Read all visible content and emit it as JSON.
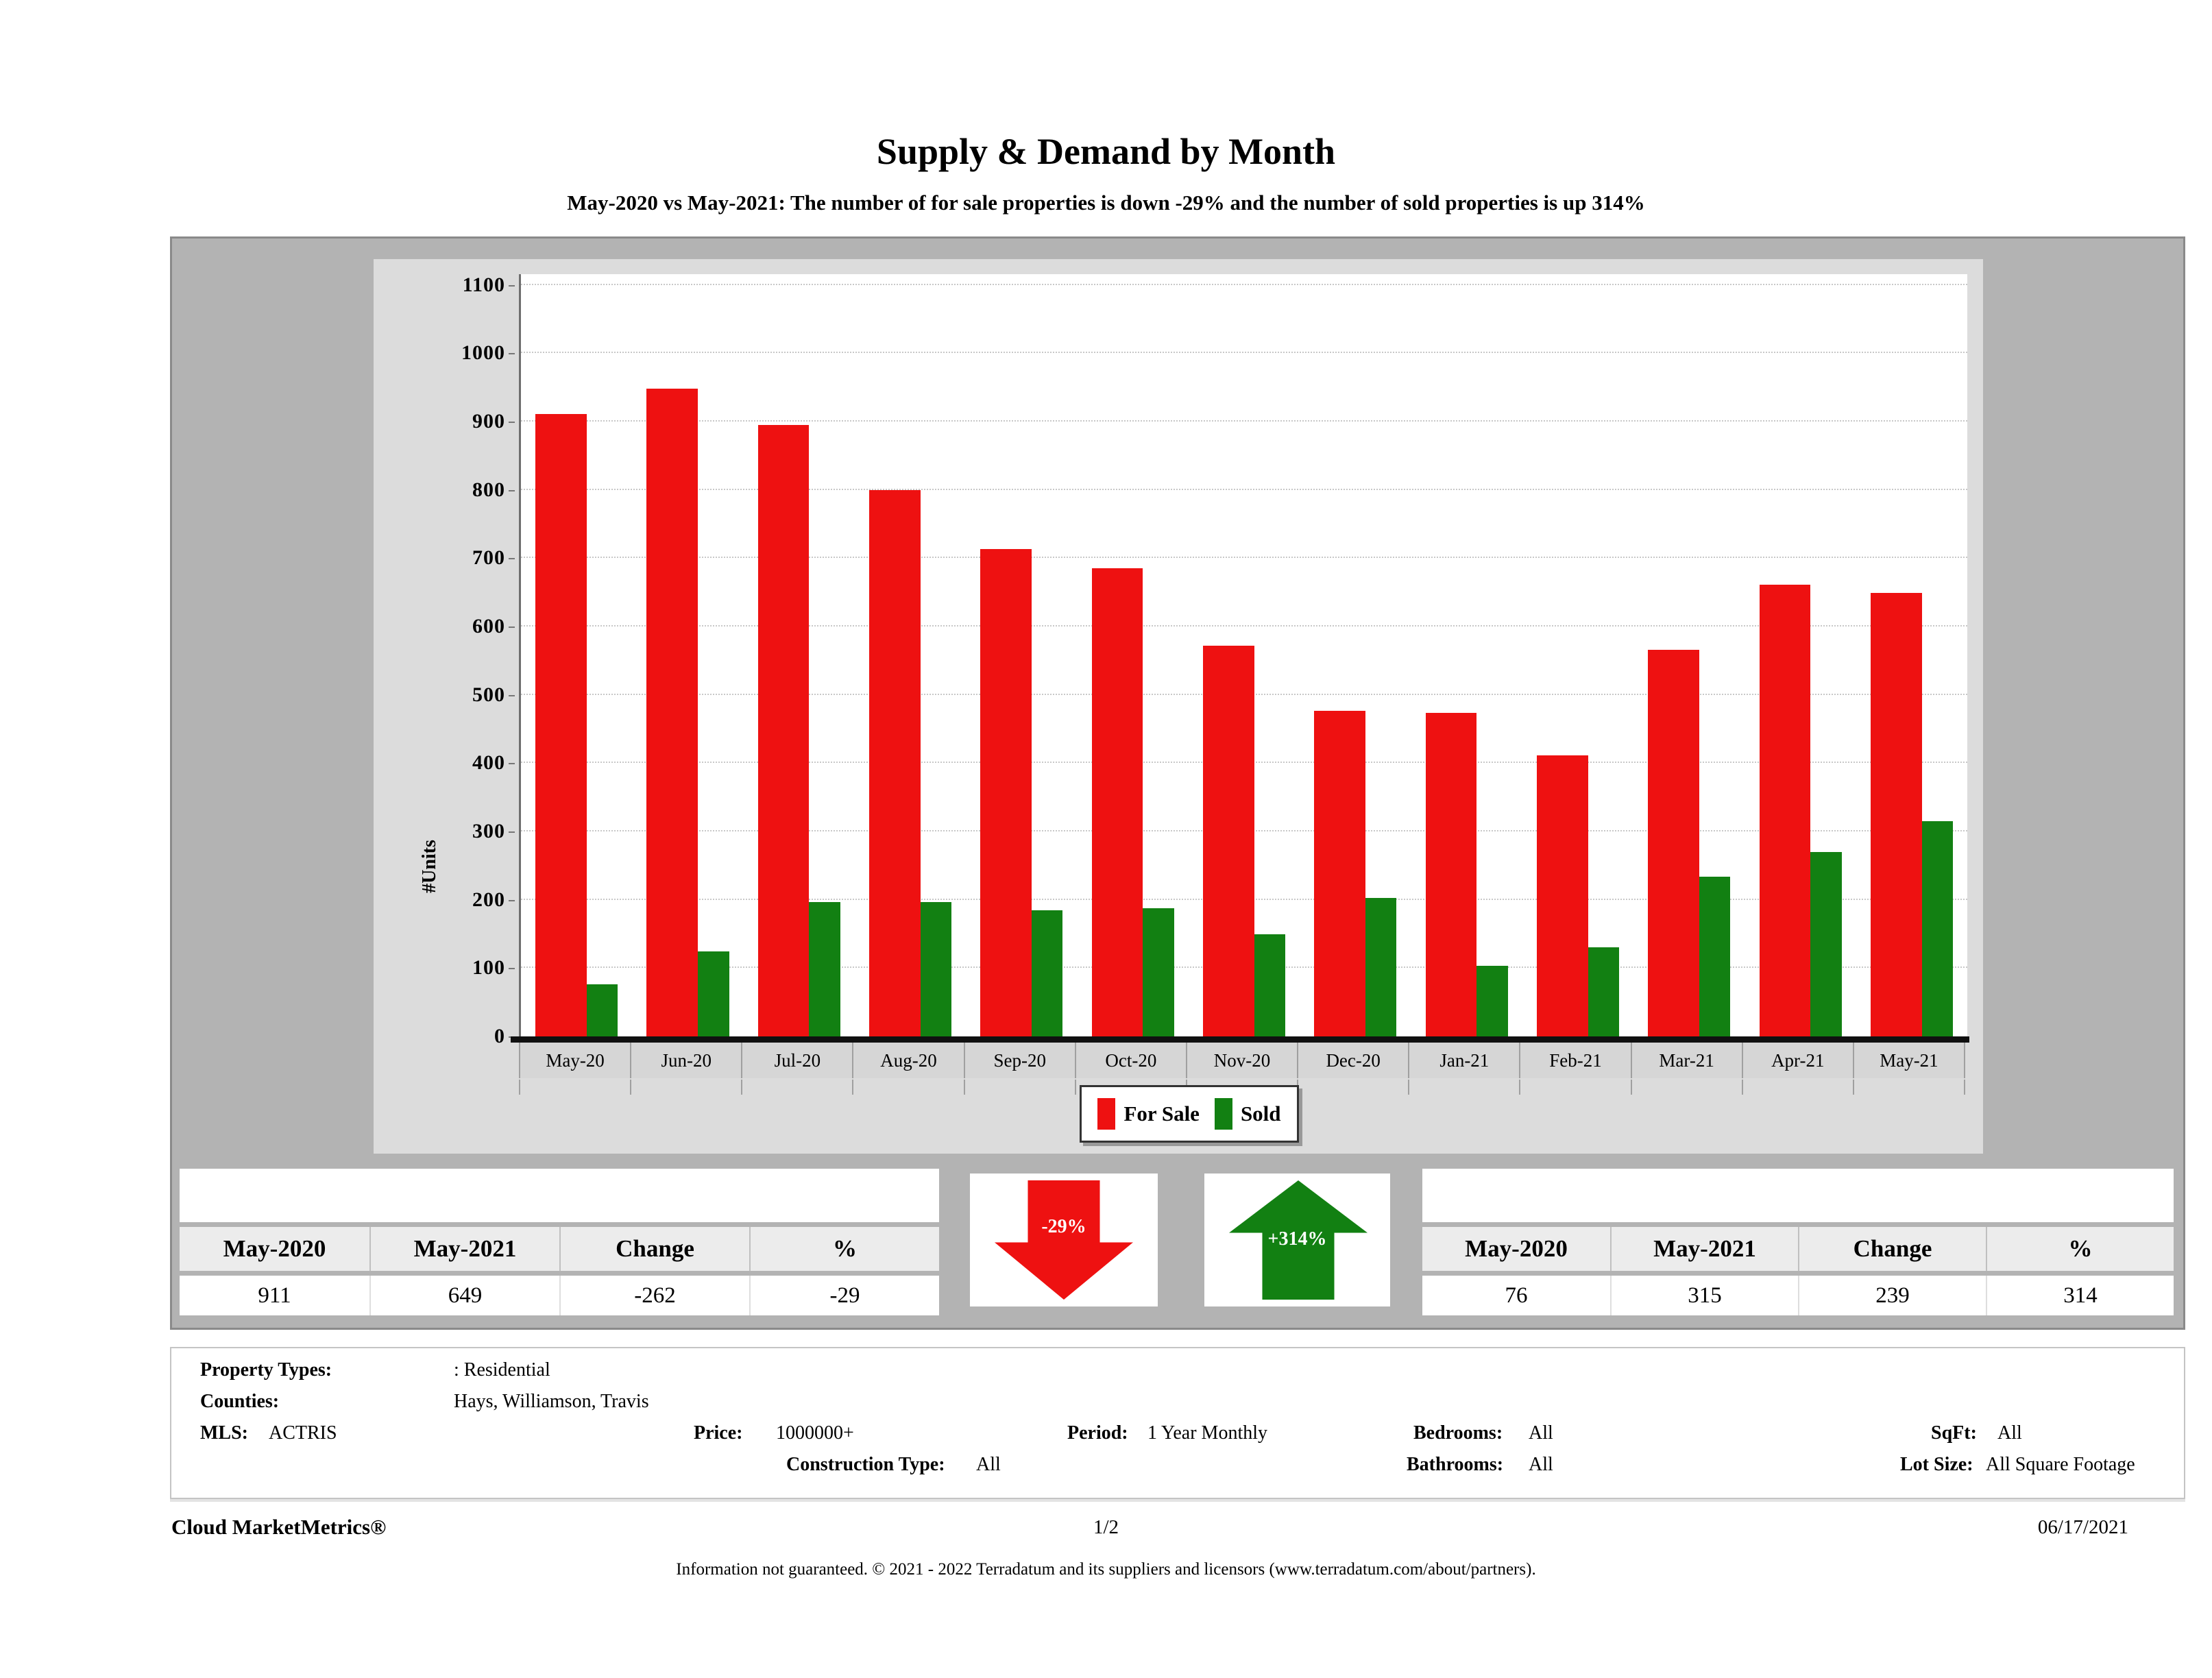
{
  "page": {
    "title": "Supply & Demand by Month",
    "subtitle": "May-2020 vs May-2021: The number of for sale properties is down -29% and the number of sold properties is up 314%"
  },
  "chart_data": {
    "type": "bar",
    "title": "Supply & Demand by Month",
    "ylabel": "#Units",
    "xlabel": "",
    "ylim": [
      0,
      1100
    ],
    "ytick_interval": 100,
    "grid": "horizontal-dotted",
    "legend_position": "bottom-center",
    "categories": [
      "May-20",
      "Jun-20",
      "Jul-20",
      "Aug-20",
      "Sep-20",
      "Oct-20",
      "Nov-20",
      "Dec-20",
      "Jan-21",
      "Feb-21",
      "Mar-21",
      "Apr-21",
      "May-21"
    ],
    "series": [
      {
        "name": "For Sale",
        "color": "#ee1111",
        "values": [
          911,
          948,
          895,
          800,
          713,
          685,
          572,
          477,
          474,
          411,
          566,
          661,
          649
        ]
      },
      {
        "name": "Sold",
        "color": "#128012",
        "values": [
          76,
          124,
          197,
          197,
          185,
          188,
          150,
          203,
          103,
          130,
          234,
          270,
          315
        ]
      }
    ]
  },
  "summary_tables": {
    "headers": [
      "May-2020",
      "May-2021",
      "Change",
      "%"
    ],
    "for_sale_values": [
      "911",
      "649",
      "-262",
      "-29"
    ],
    "sold_values": [
      "76",
      "315",
      "239",
      "314"
    ]
  },
  "arrows": {
    "for_sale_change_label": "-29%",
    "for_sale_color": "#ee1111",
    "sold_change_label": "+314%",
    "sold_color": "#128012"
  },
  "filters": {
    "property_types": {
      "label": "Property Types:",
      "value": ": Residential"
    },
    "counties": {
      "label": "Counties:",
      "value": "Hays, Williamson, Travis"
    },
    "mls": {
      "label": "MLS:",
      "value": "ACTRIS"
    },
    "price": {
      "label": "Price:",
      "value": "1000000+"
    },
    "period": {
      "label": "Period:",
      "value": "1 Year Monthly"
    },
    "bedrooms": {
      "label": "Bedrooms:",
      "value": "All"
    },
    "sqft": {
      "label": "SqFt:",
      "value": "All"
    },
    "construction_type": {
      "label": "Construction Type:",
      "value": "All"
    },
    "bathrooms": {
      "label": "Bathrooms:",
      "value": "All"
    },
    "lot_size": {
      "label": "Lot Size:",
      "value": "All Square Footage"
    }
  },
  "footer": {
    "brand": "Cloud MarketMetrics®",
    "page_number": "1/2",
    "date": "06/17/2021",
    "disclaimer": "Information not guaranteed. © 2021 - 2022 Terradatum and its suppliers and licensors (www.terradatum.com/about/partners)."
  }
}
